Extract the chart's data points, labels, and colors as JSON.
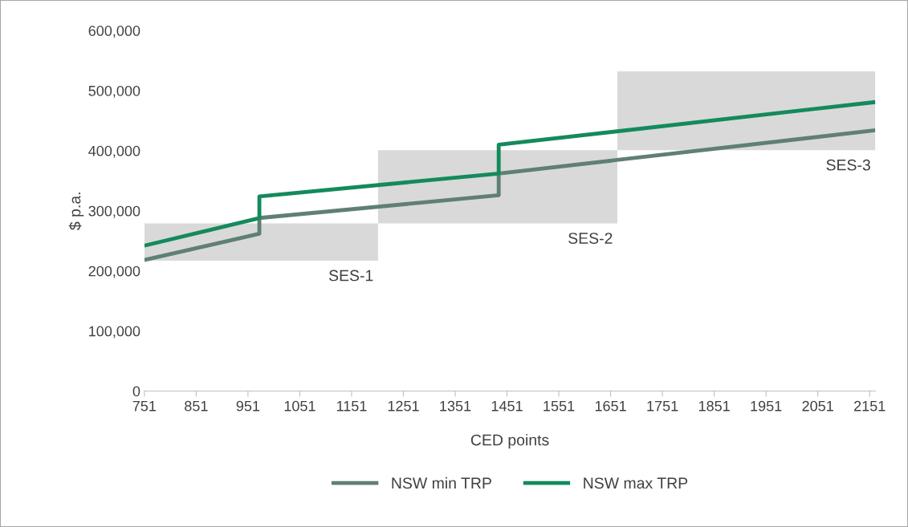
{
  "chart_data": {
    "type": "line",
    "xlabel": "CED points",
    "ylabel": "$ p.a.",
    "xlim": [
      751,
      2162
    ],
    "xticks": [
      751,
      851,
      951,
      1051,
      1151,
      1251,
      1351,
      1451,
      1551,
      1651,
      1751,
      1851,
      1951,
      2051,
      2151
    ],
    "ylim": [
      0,
      600000
    ],
    "yticks": [
      {
        "value": 0,
        "label": "0"
      },
      {
        "value": 100000,
        "label": "100,000"
      },
      {
        "value": 200000,
        "label": "200,000"
      },
      {
        "value": 300000,
        "label": "300,000"
      },
      {
        "value": 400000,
        "label": "400,000"
      },
      {
        "value": 500000,
        "label": "500,000"
      },
      {
        "value": 600000,
        "label": "600,000"
      }
    ],
    "grid": false,
    "legend": "bottom",
    "line_style": "solid",
    "marker": "none",
    "series": [
      {
        "type": "bar",
        "color": "#d9d9d9",
        "x": [
          976.5,
          1433,
          1913
        ],
        "base": [
          217000,
          279000,
          401000
        ],
        "values": [
          62000,
          122000,
          131000
        ]
      },
      {
        "name": "NSW min TRP",
        "color": "#5f8073",
        "x": [
          751,
          973,
          973,
          1435,
          1435,
          2162
        ],
        "values": [
          218000,
          262000,
          288000,
          326000,
          362000,
          434000
        ]
      },
      {
        "name": "NSW max TRP",
        "color": "#148a5c",
        "x": [
          751,
          973,
          973,
          1435,
          1435,
          2162
        ],
        "values": [
          242000,
          288000,
          324000,
          362000,
          410000,
          481000
        ]
      }
    ],
    "annotations": [
      "SES-1",
      "SES-2",
      "SES-3"
    ]
  }
}
